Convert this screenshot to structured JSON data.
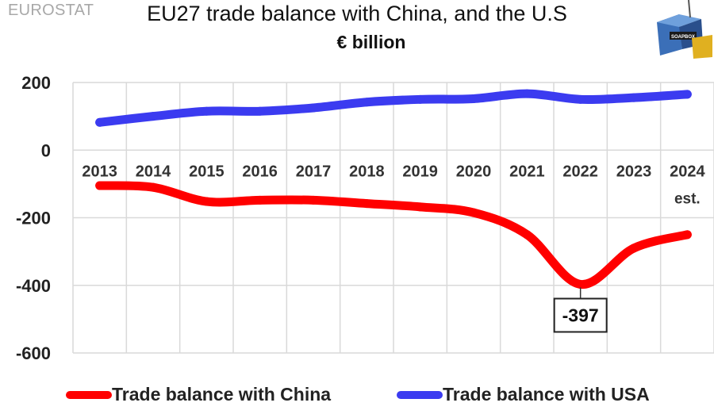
{
  "source_label": "EUROSTAT",
  "logo_text": "SOAPBOX",
  "chart_data": {
    "type": "line",
    "title": "EU27 trade balance with China, and the U.S",
    "subtitle": "€ billion",
    "categories": [
      "2013",
      "2014",
      "2015",
      "2016",
      "2017",
      "2018",
      "2019",
      "2020",
      "2021",
      "2022",
      "2023",
      "2024"
    ],
    "category_sublabels": [
      "",
      "",
      "",
      "",
      "",
      "",
      "",
      "",
      "",
      "",
      "",
      "est."
    ],
    "series": [
      {
        "name": "Trade balance with China",
        "color": "#ff0000",
        "values": [
          -105,
          -110,
          -152,
          -148,
          -148,
          -158,
          -168,
          -185,
          -250,
          -397,
          -290,
          -250
        ]
      },
      {
        "name": "Trade balance with USA",
        "color": "#3b3bf0",
        "values": [
          82,
          100,
          115,
          115,
          125,
          142,
          150,
          152,
          167,
          150,
          155,
          165
        ]
      }
    ],
    "y_ticks": [
      "200",
      "0",
      "-200",
      "-400",
      "-600"
    ],
    "ylim": [
      -600,
      200
    ],
    "grid": true,
    "legend_position": "bottom",
    "annotations": [
      {
        "series": 0,
        "category": "2022",
        "text": "-397"
      }
    ]
  }
}
